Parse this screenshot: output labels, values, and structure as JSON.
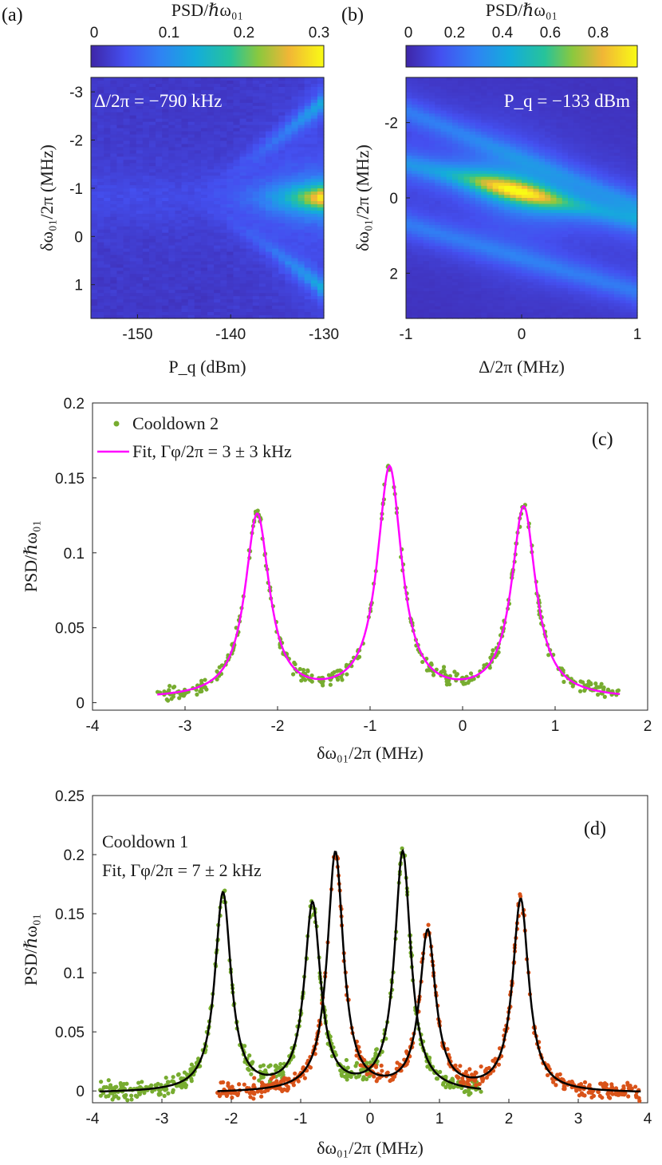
{
  "chart_data": [
    {
      "id": "a",
      "type": "heatmap",
      "panel_label": "(a)",
      "colorbar_label": "PSD/ℏω₀₁",
      "colorbar_ticks": [
        "0",
        "0.1",
        "0.2",
        "0.3"
      ],
      "colorbar_range": [
        0,
        0.31
      ],
      "annotation": "Δ/2π = −790 kHz",
      "xlabel": "P_q (dBm)",
      "ylabel": "δω₀₁/2π (MHz)",
      "xlim": [
        -155,
        -130
      ],
      "ylim": [
        -3.3,
        1.7
      ],
      "y_reversed": true,
      "xticks": [
        -150,
        -140,
        -130
      ],
      "xtick_labels": [
        "-150",
        "-140",
        "-130"
      ],
      "yticks": [
        -3,
        -2,
        -1,
        0,
        1
      ],
      "ytick_labels": [
        "-3",
        "-2",
        "-1",
        "0",
        "1"
      ],
      "peaks": [
        {
          "center_mhz": -0.8,
          "max_psd": 0.3
        },
        {
          "center_mhz_at_max_power": -2.8,
          "max_psd": 0.13
        },
        {
          "center_mhz_at_max_power": 1.1,
          "max_psd": 0.13
        }
      ]
    },
    {
      "id": "b",
      "type": "heatmap",
      "panel_label": "(b)",
      "colorbar_label": "PSD/ℏω₀₁",
      "colorbar_ticks": [
        "0",
        "0.2",
        "0.4",
        "0.6",
        "0.8"
      ],
      "colorbar_range": [
        0,
        0.98
      ],
      "annotation": "P_q = −133 dBm",
      "xlabel": "Δ/2π (MHz)",
      "ylabel": "δω₀₁/2π (MHz)",
      "xlim": [
        -1,
        1
      ],
      "ylim": [
        -3.2,
        3.2
      ],
      "y_reversed": true,
      "xticks": [
        -1,
        0,
        1
      ],
      "xtick_labels": [
        "-1",
        "0",
        "1"
      ],
      "yticks": [
        -2,
        0,
        2
      ],
      "ytick_labels": [
        "-2",
        "0",
        "2"
      ],
      "ridges": [
        {
          "at_x_minus1": -2.3,
          "at_x_plus1": 0.2
        },
        {
          "at_x_minus1": -0.9,
          "at_x_plus1": 0.6,
          "peak_psd": 0.95
        },
        {
          "at_x_minus1": 0.7,
          "at_x_plus1": 2.5
        }
      ]
    },
    {
      "id": "c",
      "type": "scatter",
      "panel_label": "(c)",
      "xlabel": "δω₀₁/2π (MHz)",
      "ylabel": "PSD/ℏω₀₁",
      "xlim": [
        -4,
        2
      ],
      "ylim": [
        -0.005,
        0.2
      ],
      "xticks": [
        -4,
        -3,
        -2,
        -1,
        0,
        1,
        2
      ],
      "xtick_labels": [
        "-4",
        "-3",
        "-2",
        "-1",
        "0",
        "1",
        "2"
      ],
      "yticks": [
        0,
        0.05,
        0.1,
        0.15,
        0.2
      ],
      "ytick_labels": [
        "0",
        "0.05",
        "0.1",
        "0.15",
        "0.2"
      ],
      "legend_position": "top-left",
      "series": [
        {
          "name": "Cooldown 2",
          "kind": "points",
          "color": "#77ac30",
          "x_range": [
            -3.3,
            1.7
          ]
        },
        {
          "name": "Fit, Γφ/2π = 3 ± 3 kHz",
          "kind": "line",
          "color": "#ff00ff",
          "x_range": [
            -3.3,
            1.7
          ],
          "peaks": [
            {
              "x0": -2.22,
              "amplitude": 0.122,
              "width": 0.16
            },
            {
              "x0": -0.79,
              "amplitude": 0.153,
              "width": 0.16
            },
            {
              "x0": 0.66,
              "amplitude": 0.127,
              "width": 0.16
            }
          ]
        }
      ]
    },
    {
      "id": "d",
      "type": "scatter",
      "panel_label": "(d)",
      "xlabel": "δω₀₁/2π (MHz)",
      "ylabel": "PSD/ℏω₀₁",
      "xlim": [
        -4,
        4
      ],
      "ylim": [
        -0.01,
        0.25
      ],
      "xticks": [
        -4,
        -3,
        -2,
        -1,
        0,
        1,
        2,
        3,
        4
      ],
      "xtick_labels": [
        "-4",
        "-3",
        "-2",
        "-1",
        "0",
        "1",
        "2",
        "3",
        "4"
      ],
      "yticks": [
        0,
        0.05,
        0.1,
        0.15,
        0.2,
        0.25
      ],
      "ytick_labels": [
        "0",
        "0.05",
        "0.1",
        "0.15",
        "0.2",
        "0.25"
      ],
      "legend_text": [
        "Cooldown 1",
        "Fit, Γφ/2π = 7 ± 2 kHz"
      ],
      "series": [
        {
          "kind": "points",
          "color": "#77ac30",
          "x_range": [
            -3.9,
            1.6
          ],
          "peaks": [
            {
              "x0": -2.12,
              "amplitude": 0.168,
              "width": 0.14
            },
            {
              "x0": -0.83,
              "amplitude": 0.158,
              "width": 0.14
            },
            {
              "x0": 0.47,
              "amplitude": 0.203,
              "width": 0.14
            }
          ]
        },
        {
          "kind": "points",
          "color": "#d95319",
          "x_range": [
            -2.2,
            3.9
          ],
          "peaks": [
            {
              "x0": -0.5,
              "amplitude": 0.203,
              "width": 0.14
            },
            {
              "x0": 0.83,
              "amplitude": 0.135,
              "width": 0.14
            },
            {
              "x0": 2.17,
              "amplitude": 0.163,
              "width": 0.14
            }
          ]
        },
        {
          "kind": "line",
          "color": "#000000",
          "name": "fit",
          "x_ranges": [
            [
              -3.9,
              1.6
            ],
            [
              -2.2,
              3.9
            ]
          ]
        }
      ]
    }
  ]
}
